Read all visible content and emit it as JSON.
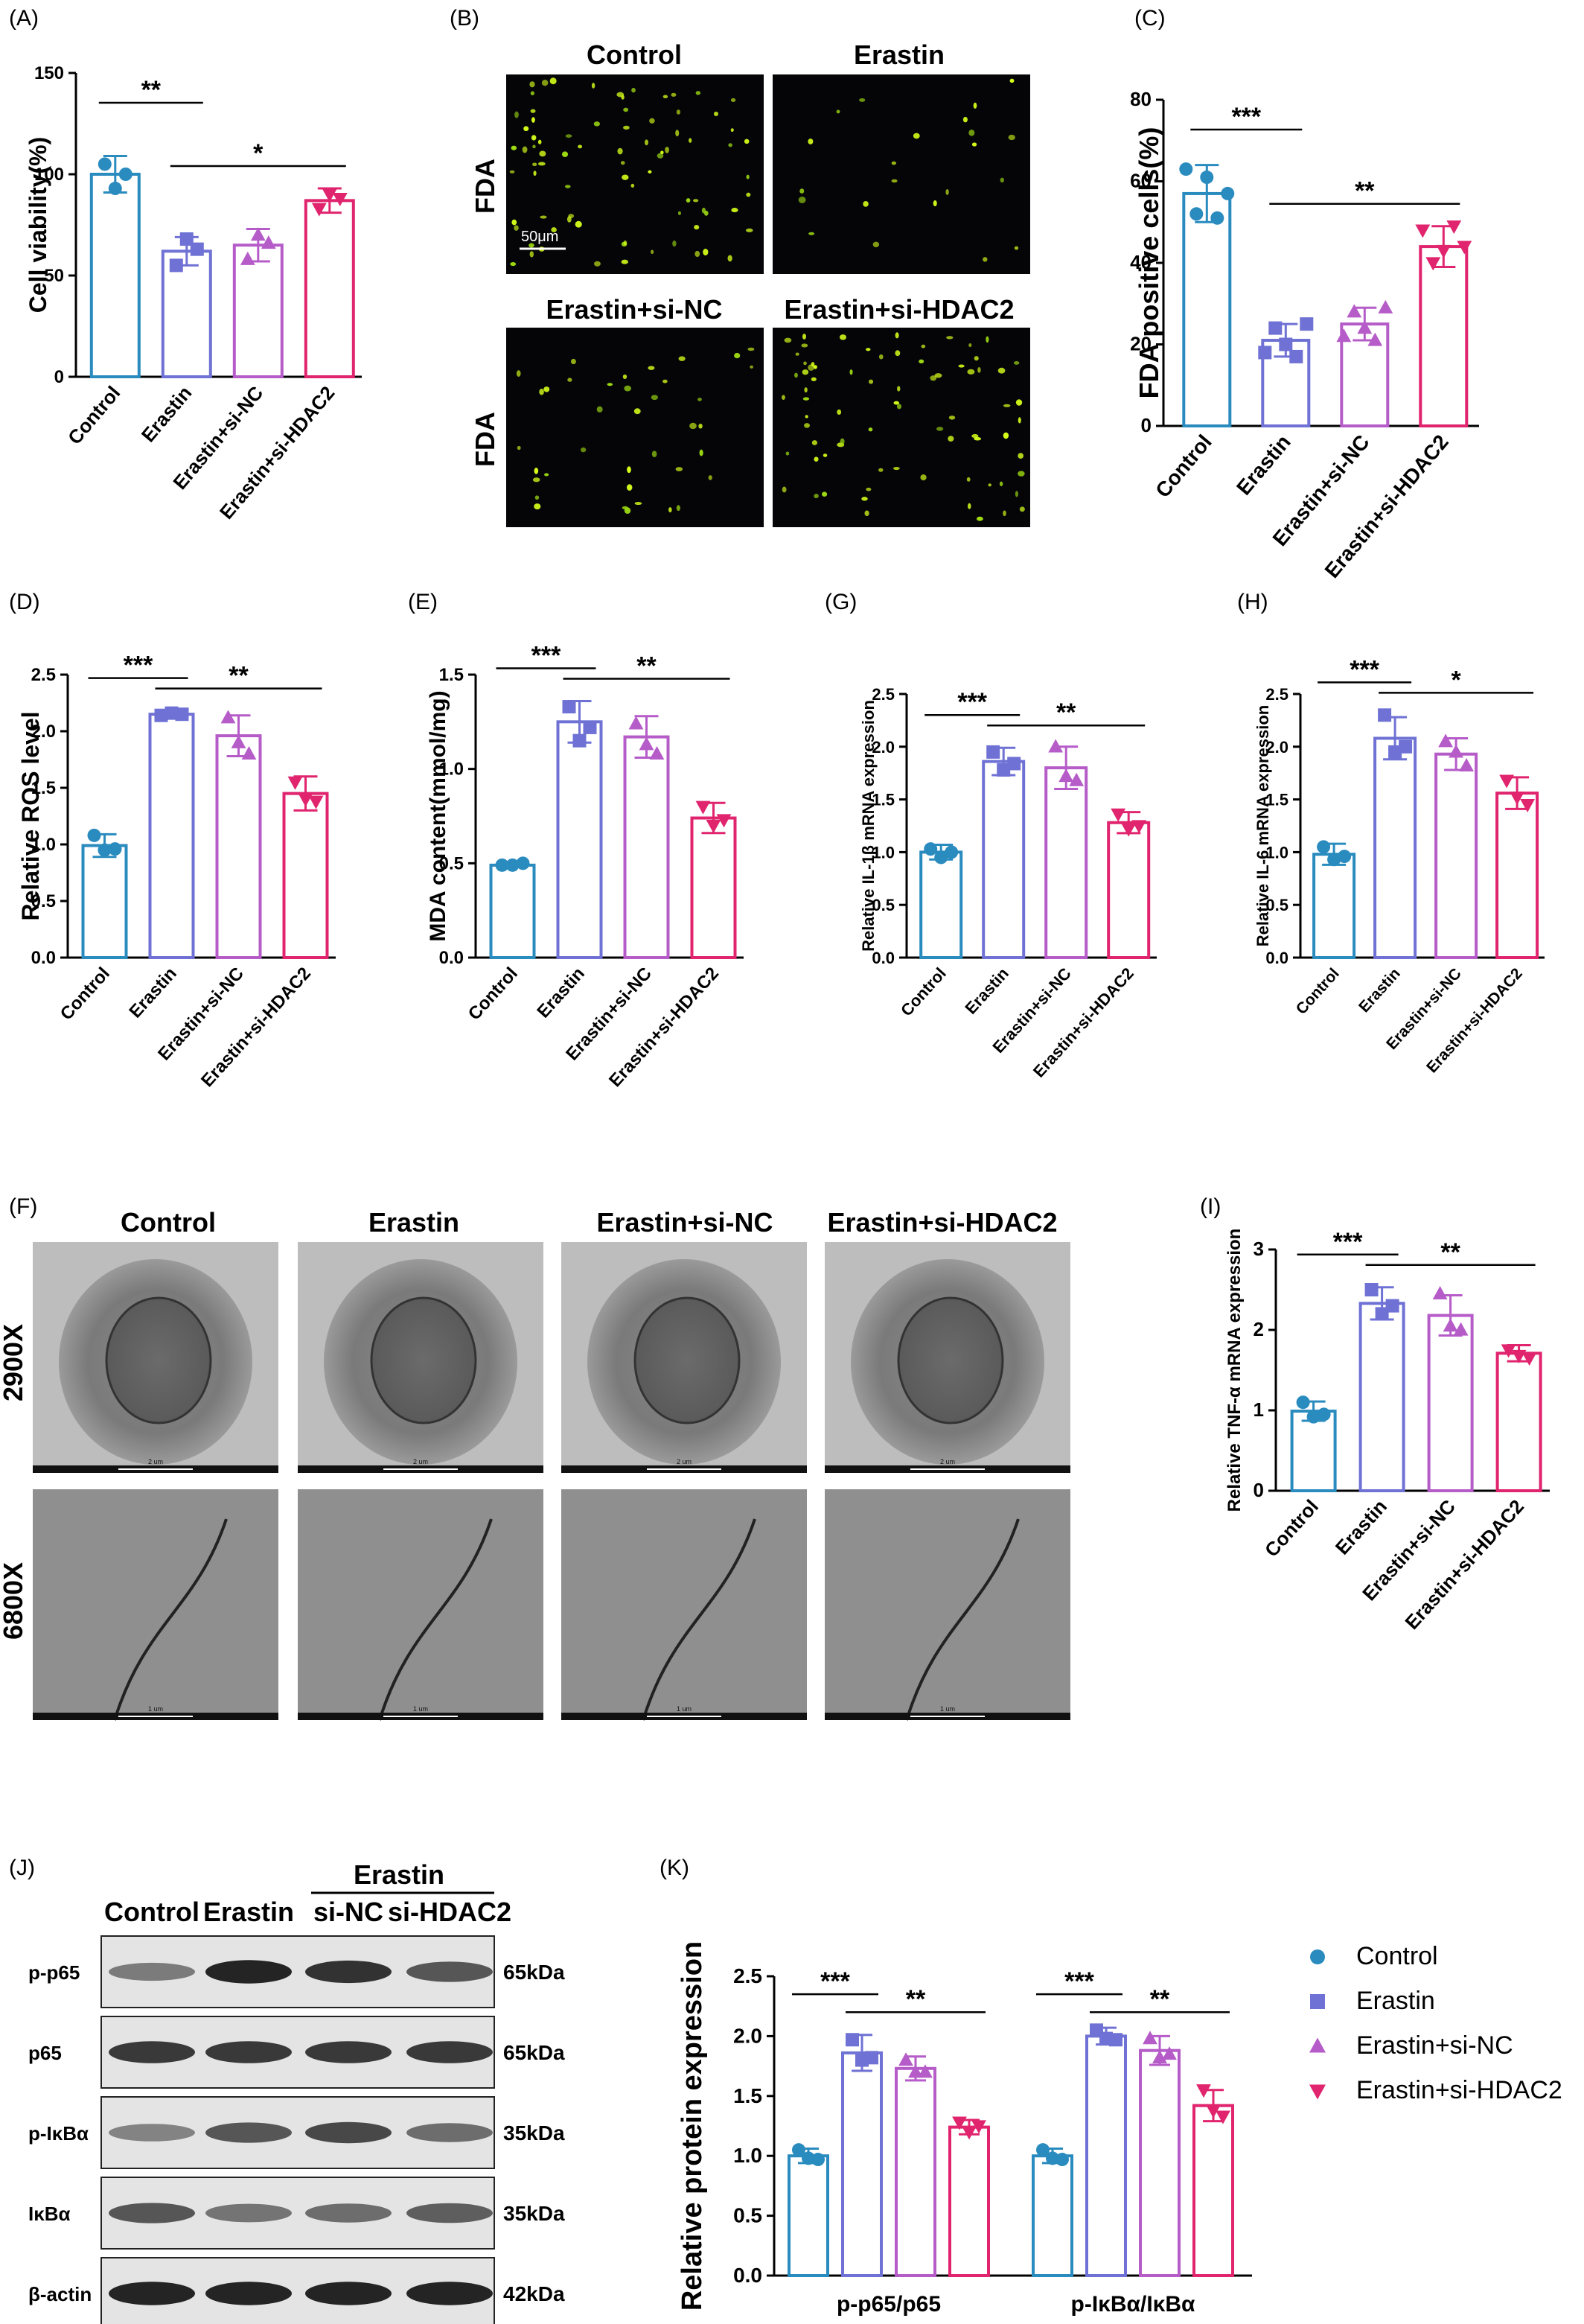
{
  "panel_labels": {
    "A": "(A)",
    "B": "(B)",
    "C": "(C)",
    "D": "(D)",
    "E": "(E)",
    "F": "(F)",
    "G": "(G)",
    "H": "(H)",
    "I": "(I)",
    "J": "(J)",
    "K": "(K)"
  },
  "groups": [
    "Control",
    "Erastin",
    "Erastin+si-NC",
    "Erastin+si-HDAC2"
  ],
  "colors": {
    "control": "#2a8bbf",
    "erastin": "#6f72d4",
    "si_nc": "#b65cc9",
    "si_hdac2": "#e0246e"
  },
  "micrograph_B": {
    "headers": [
      "Control",
      "Erastin",
      "Erastin+si-NC",
      "Erastin+si-HDAC2"
    ],
    "row_label": "FDA",
    "scale_bar": "50μm"
  },
  "micrograph_F": {
    "headers": [
      "Control",
      "Erastin",
      "Erastin+si-NC",
      "Erastin+si-HDAC2"
    ],
    "row_labels": [
      "2900X",
      "6800X"
    ],
    "scale_bars": [
      "2 um",
      "1 um"
    ]
  },
  "western_J": {
    "group_header": "Erastin",
    "lanes": [
      "Control",
      "Erastin",
      "si-NC",
      "si-HDAC2"
    ],
    "proteins": [
      "p-p65",
      "p65",
      "p-IκBα",
      "IκBα",
      "β-actin"
    ],
    "sizes": [
      "65kDa",
      "65kDa",
      "35kDa",
      "35kDa",
      "42kDa"
    ]
  },
  "chart_data": [
    {
      "id": "A",
      "type": "bar",
      "categories": [
        "Control",
        "Erastin",
        "Erastin+si-NC",
        "Erastin+si-HDAC2"
      ],
      "values": [
        100,
        62,
        65,
        87
      ],
      "errors": [
        9,
        7,
        8,
        6
      ],
      "points": [
        [
          105,
          93,
          100
        ],
        [
          55,
          68,
          63
        ],
        [
          58,
          70,
          66
        ],
        [
          83,
          90,
          88
        ]
      ],
      "ylabel": "Cell viability(%)",
      "ylim": [
        0,
        150
      ],
      "yticks": [
        0,
        50,
        100,
        150
      ],
      "significance": [
        {
          "from": 0,
          "to": 1,
          "label": "**"
        },
        {
          "from": 1,
          "to": 3,
          "label": "*"
        }
      ]
    },
    {
      "id": "C",
      "type": "bar",
      "categories": [
        "Control",
        "Erastin",
        "Erastin+si-NC",
        "Erastin+si-HDAC2"
      ],
      "values": [
        57,
        21,
        25,
        44
      ],
      "errors": [
        7,
        4,
        4,
        5
      ],
      "points": [
        [
          63,
          52,
          61,
          51,
          57
        ],
        [
          18,
          24,
          20,
          17,
          25
        ],
        [
          22,
          28,
          24,
          21,
          29
        ],
        [
          48,
          40,
          43,
          49,
          44
        ]
      ],
      "ylabel": "FDA positive cells(%)",
      "ylim": [
        0,
        80
      ],
      "yticks": [
        0,
        20,
        40,
        60,
        80
      ],
      "significance": [
        {
          "from": 0,
          "to": 1,
          "label": "***"
        },
        {
          "from": 1,
          "to": 3,
          "label": "**"
        }
      ]
    },
    {
      "id": "D",
      "type": "bar",
      "categories": [
        "Control",
        "Erastin",
        "Erastin+si-NC",
        "Erastin+si-HDAC2"
      ],
      "values": [
        0.99,
        2.15,
        1.96,
        1.45
      ],
      "errors": [
        0.1,
        0.03,
        0.18,
        0.15
      ],
      "points": [
        [
          1.08,
          0.95,
          0.96
        ],
        [
          2.14,
          2.16,
          2.15
        ],
        [
          2.12,
          1.9,
          1.8
        ],
        [
          1.55,
          1.4,
          1.38
        ]
      ],
      "ylabel": "Relative ROS level",
      "ylim": [
        0,
        2.5
      ],
      "yticks": [
        0,
        0.5,
        1.0,
        1.5,
        2.0,
        2.5
      ],
      "significance": [
        {
          "from": 0,
          "to": 1,
          "label": "***"
        },
        {
          "from": 1,
          "to": 3,
          "label": "**"
        }
      ]
    },
    {
      "id": "E",
      "type": "bar",
      "categories": [
        "Control",
        "Erastin",
        "Erastin+si-NC",
        "Erastin+si-HDAC2"
      ],
      "values": [
        0.49,
        1.25,
        1.17,
        0.74
      ],
      "errors": [
        0.01,
        0.11,
        0.11,
        0.08
      ],
      "points": [
        [
          0.49,
          0.49,
          0.5
        ],
        [
          1.33,
          1.15,
          1.22
        ],
        [
          1.24,
          1.13,
          1.08
        ],
        [
          0.8,
          0.7,
          0.73
        ]
      ],
      "ylabel": "MDA content(mmol/mg)",
      "ylim": [
        0,
        1.5
      ],
      "yticks": [
        0,
        0.5,
        1.0,
        1.5
      ],
      "significance": [
        {
          "from": 0,
          "to": 1,
          "label": "***"
        },
        {
          "from": 1,
          "to": 3,
          "label": "**"
        }
      ]
    },
    {
      "id": "G",
      "type": "bar",
      "categories": [
        "Control",
        "Erastin",
        "Erastin+si-NC",
        "Erastin+si-HDAC2"
      ],
      "values": [
        1.0,
        1.86,
        1.8,
        1.28
      ],
      "errors": [
        0.07,
        0.13,
        0.2,
        0.1
      ],
      "points": [
        [
          1.03,
          0.95,
          1.0
        ],
        [
          1.95,
          1.78,
          1.84
        ],
        [
          2.0,
          1.72,
          1.68
        ],
        [
          1.36,
          1.22,
          1.25
        ]
      ],
      "ylabel": "Relative IL-1β mRNA expression",
      "ylim": [
        0,
        2.5
      ],
      "yticks": [
        0,
        0.5,
        1.0,
        1.5,
        2.0,
        2.5
      ],
      "significance": [
        {
          "from": 0,
          "to": 1,
          "label": "***"
        },
        {
          "from": 1,
          "to": 3,
          "label": "**"
        }
      ]
    },
    {
      "id": "H",
      "type": "bar",
      "categories": [
        "Control",
        "Erastin",
        "Erastin+si-NC",
        "Erastin+si-HDAC2"
      ],
      "values": [
        0.98,
        2.08,
        1.93,
        1.56
      ],
      "errors": [
        0.1,
        0.2,
        0.15,
        0.15
      ],
      "points": [
        [
          1.05,
          0.93,
          0.96
        ],
        [
          2.3,
          1.95,
          2.0
        ],
        [
          2.05,
          1.95,
          1.82
        ],
        [
          1.68,
          1.52,
          1.45
        ]
      ],
      "ylabel": "Relative IL-6 mRNA expression",
      "ylim": [
        0,
        2.5
      ],
      "yticks": [
        0,
        0.5,
        1.0,
        1.5,
        2.0,
        2.5
      ],
      "significance": [
        {
          "from": 0,
          "to": 1,
          "label": "***"
        },
        {
          "from": 1,
          "to": 3,
          "label": "*"
        }
      ]
    },
    {
      "id": "I",
      "type": "bar",
      "categories": [
        "Control",
        "Erastin",
        "Erastin+si-NC",
        "Erastin+si-HDAC2"
      ],
      "values": [
        0.99,
        2.33,
        2.18,
        1.71
      ],
      "errors": [
        0.12,
        0.2,
        0.25,
        0.1
      ],
      "points": [
        [
          1.1,
          0.92,
          0.95
        ],
        [
          2.5,
          2.2,
          2.3
        ],
        [
          2.45,
          2.05,
          2.0
        ],
        [
          1.75,
          1.68,
          1.65
        ]
      ],
      "ylabel": "Relative TNF-α mRNA expression",
      "ylim": [
        0,
        3
      ],
      "yticks": [
        0,
        1,
        2,
        3
      ],
      "significance": [
        {
          "from": 0,
          "to": 1,
          "label": "***"
        },
        {
          "from": 1,
          "to": 3,
          "label": "**"
        }
      ]
    },
    {
      "id": "K",
      "type": "bar",
      "categories": [
        "p-p65/p65",
        "p-IκBα/IκBα"
      ],
      "series": [
        {
          "name": "Control",
          "values": [
            1.0,
            1.0
          ],
          "errors": [
            0.06,
            0.06
          ],
          "points": [
            [
              1.05,
              0.98,
              0.97
            ],
            [
              1.05,
              0.98,
              0.97
            ]
          ]
        },
        {
          "name": "Erastin",
          "values": [
            1.86,
            2.0
          ],
          "errors": [
            0.15,
            0.07
          ],
          "points": [
            [
              1.97,
              1.8,
              1.82
            ],
            [
              2.05,
              1.98,
              1.97
            ]
          ]
        },
        {
          "name": "Erastin+si-NC",
          "values": [
            1.73,
            1.88
          ],
          "errors": [
            0.1,
            0.12
          ],
          "points": [
            [
              1.8,
              1.7,
              1.7
            ],
            [
              1.98,
              1.82,
              1.85
            ]
          ]
        },
        {
          "name": "Erastin+si-HDAC2",
          "values": [
            1.24,
            1.42
          ],
          "errors": [
            0.06,
            0.13
          ],
          "points": [
            [
              1.28,
              1.2,
              1.25
            ],
            [
              1.55,
              1.38,
              1.33
            ]
          ]
        }
      ],
      "ylabel": "Relative protein expression",
      "ylim": [
        0,
        2.5
      ],
      "yticks": [
        0,
        0.5,
        1.0,
        1.5,
        2.0,
        2.5
      ],
      "legend": "right",
      "significance": [
        [
          {
            "from": 0,
            "to": 1,
            "label": "***"
          },
          {
            "from": 1,
            "to": 3,
            "label": "**"
          }
        ],
        [
          {
            "from": 0,
            "to": 1,
            "label": "***"
          },
          {
            "from": 1,
            "to": 3,
            "label": "**"
          }
        ]
      ]
    }
  ]
}
